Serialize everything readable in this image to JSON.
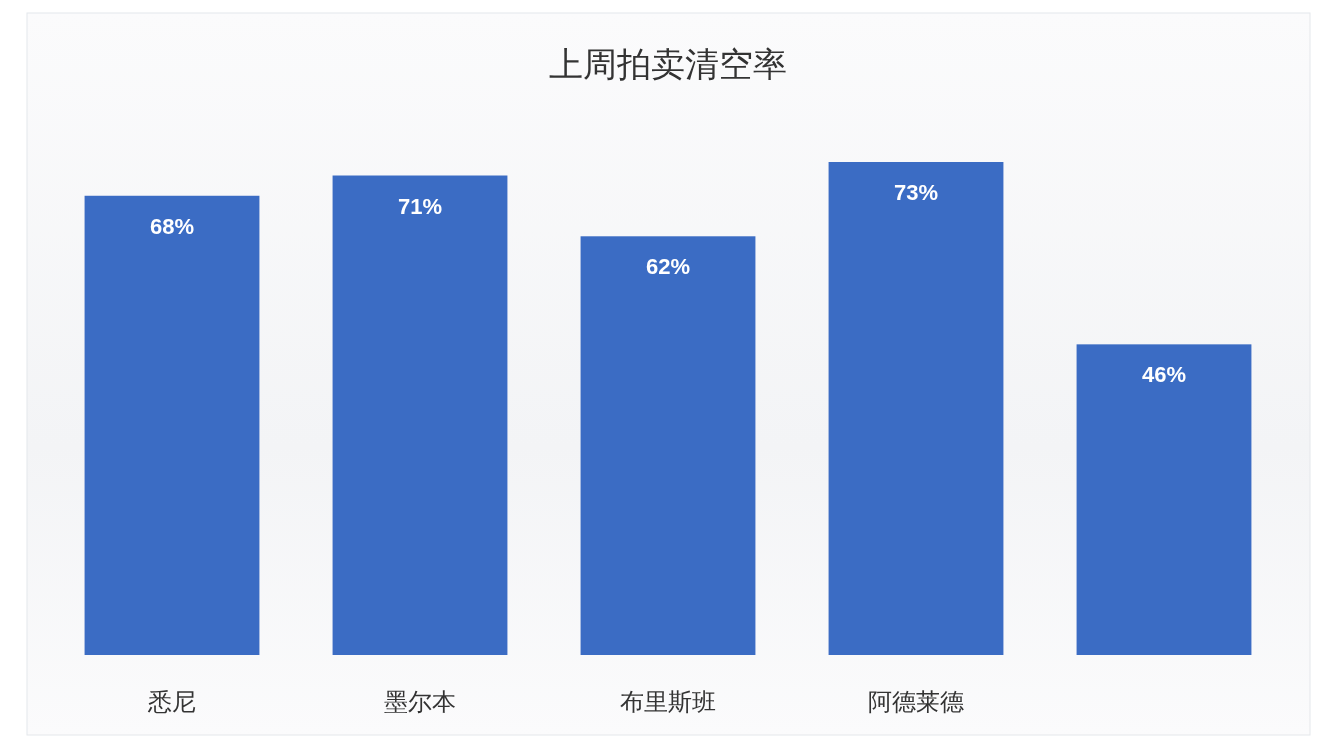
{
  "chart_data": {
    "type": "bar",
    "title": "上周拍卖清空率",
    "categories": [
      "悉尼",
      "墨尔本",
      "布里斯班",
      "阿德莱德",
      null
    ],
    "values": [
      68,
      71,
      62,
      73,
      46
    ],
    "value_labels": [
      "68%",
      "71%",
      "62%",
      "73%",
      "46%"
    ],
    "color": "#3b6cc4"
  }
}
